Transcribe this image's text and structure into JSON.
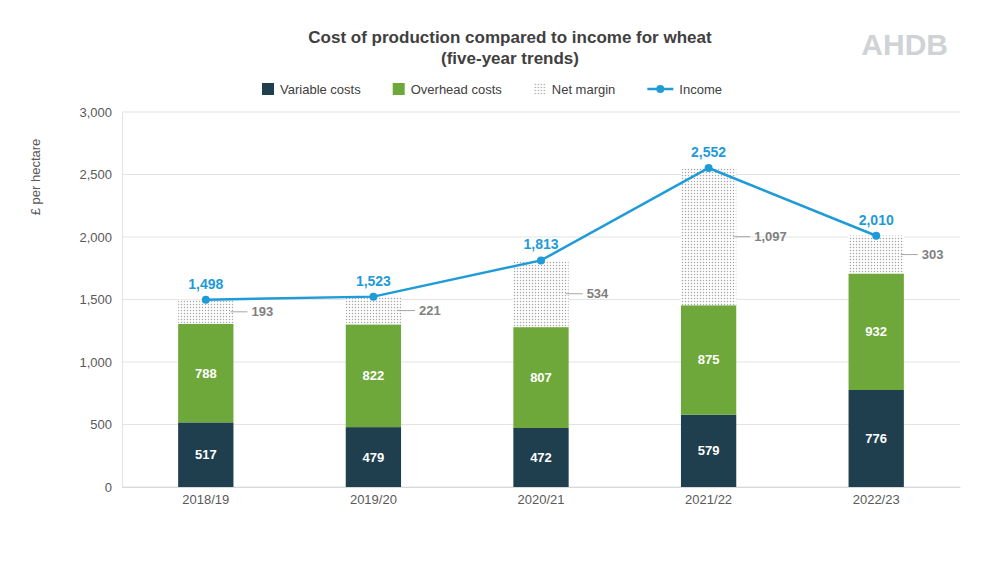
{
  "chart_data": {
    "type": "bar",
    "title": "Cost of production compared to income for wheat",
    "subtitle": "(five-year trends)",
    "annotations": [
      "AHDB"
    ],
    "y_label": "£ per hectare",
    "categories": [
      "2018/19",
      "2019/20",
      "2020/21",
      "2021/22",
      "2022/23"
    ],
    "stacked": true,
    "data_labels": true,
    "legend": "top",
    "grid": true,
    "ylim": [
      0,
      3000
    ],
    "yticks": [
      0,
      500,
      {
        "value": 1000,
        "label": "1,000"
      },
      {
        "value": 1500,
        "label": "1,500"
      },
      {
        "value": 2000,
        "label": "2,000"
      },
      {
        "value": 2500,
        "label": "2,500"
      },
      {
        "value": 3000,
        "label": "3,000"
      }
    ],
    "series": [
      {
        "name": "Variable costs",
        "type": "bar",
        "color": "#1f3e4e",
        "values": [
          517,
          479,
          472,
          579,
          776
        ]
      },
      {
        "name": "Overhead costs",
        "type": "bar",
        "color": "#6ea83a",
        "values": [
          788,
          822,
          807,
          875,
          932
        ]
      },
      {
        "name": "Net margin",
        "type": "bar",
        "color": "#a6a6a6",
        "values": [
          193,
          221,
          534,
          1097,
          303
        ],
        "value_labels": [
          "193",
          "221",
          "534",
          "1,097",
          "303"
        ]
      },
      {
        "name": "Income",
        "type": "line",
        "color": "#1f9bd7",
        "marker": "circle",
        "values": [
          1498,
          1523,
          1813,
          2552,
          2010
        ],
        "value_labels": [
          "1,498",
          "1,523",
          "1,813",
          "2,552",
          "2,010"
        ]
      }
    ]
  }
}
